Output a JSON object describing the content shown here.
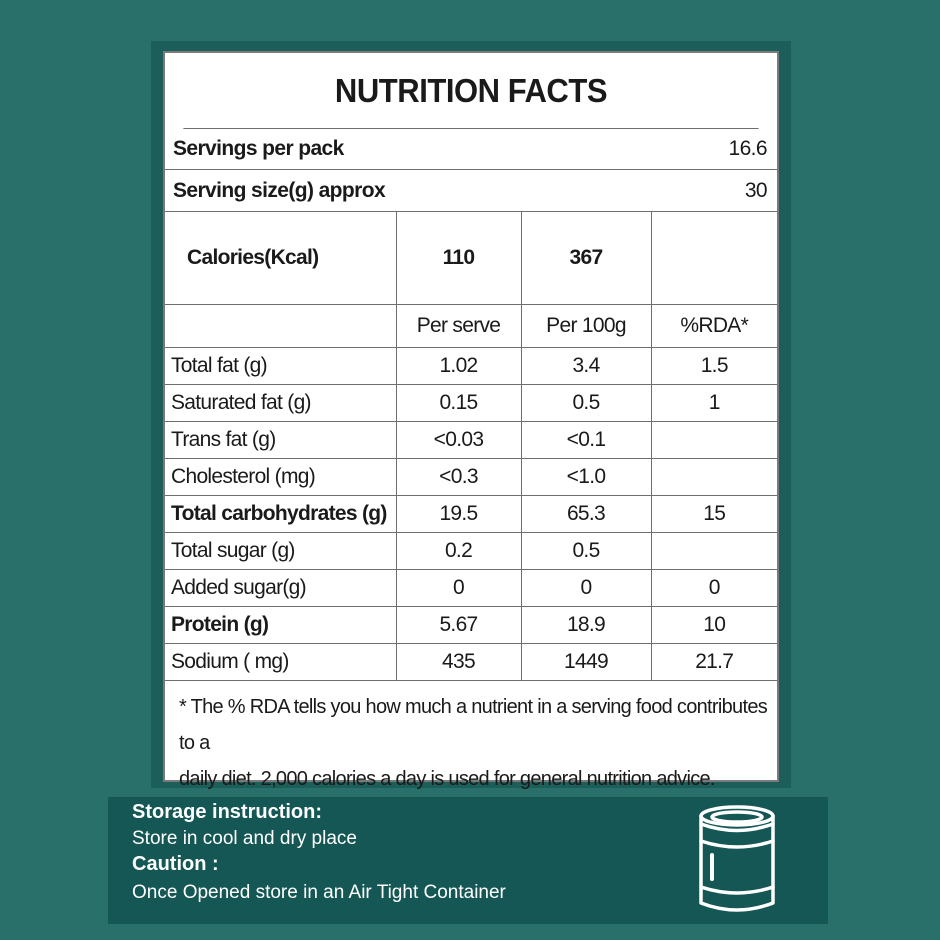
{
  "nutrition": {
    "title": "NUTRITION FACTS",
    "servings_per_pack_label": "Servings per pack",
    "servings_per_pack_value": "16.6",
    "serving_size_label": "Serving size(g) approx",
    "serving_size_value": "30",
    "calories": {
      "label": "Calories(Kcal)",
      "per_serve": "110",
      "per_100g": "367",
      "rda": ""
    },
    "column_headers": [
      "Per serve",
      "Per 100g",
      "%RDA*"
    ],
    "rows": [
      {
        "name": "Total fat (g)",
        "per_serve": "1.02",
        "per_100g": "3.4",
        "rda": "1.5",
        "bold": false
      },
      {
        "name": "Saturated fat (g)",
        "per_serve": "0.15",
        "per_100g": "0.5",
        "rda": "1",
        "bold": false
      },
      {
        "name": "Trans fat (g)",
        "per_serve": "<0.03",
        "per_100g": "<0.1",
        "rda": "",
        "bold": false
      },
      {
        "name": "Cholesterol (mg)",
        "per_serve": "<0.3",
        "per_100g": "<1.0",
        "rda": "",
        "bold": false
      },
      {
        "name": "Total carbohydrates (g)",
        "per_serve": "19.5",
        "per_100g": "65.3",
        "rda": "15",
        "bold": true
      },
      {
        "name": "Total sugar (g)",
        "per_serve": "0.2",
        "per_100g": "0.5",
        "rda": "",
        "bold": false
      },
      {
        "name": "Added sugar(g)",
        "per_serve": "0",
        "per_100g": "0",
        "rda": "0",
        "bold": false
      },
      {
        "name": "Protein (g)",
        "per_serve": "5.67",
        "per_100g": "18.9",
        "rda": "10",
        "bold": true
      },
      {
        "name": "Sodium ( mg)",
        "per_serve": "435",
        "per_100g": "1449",
        "rda": "21.7",
        "bold": false
      }
    ],
    "footnote_line1": "* The % RDA tells you how much a nutrient in a serving food contributes to a",
    "footnote_line2": "daily diet. 2,000 calories a day is used for general nutrition advice."
  },
  "storage": {
    "heading": "Storage instruction:",
    "text": "Store in cool and dry place",
    "caution_heading": "Caution :",
    "caution_text": "Once Opened store in an Air Tight Container",
    "icon": "airtight-container-icon"
  },
  "colors": {
    "background": "#29706b",
    "storage_band": "#155754",
    "panel": "#ffffff"
  }
}
